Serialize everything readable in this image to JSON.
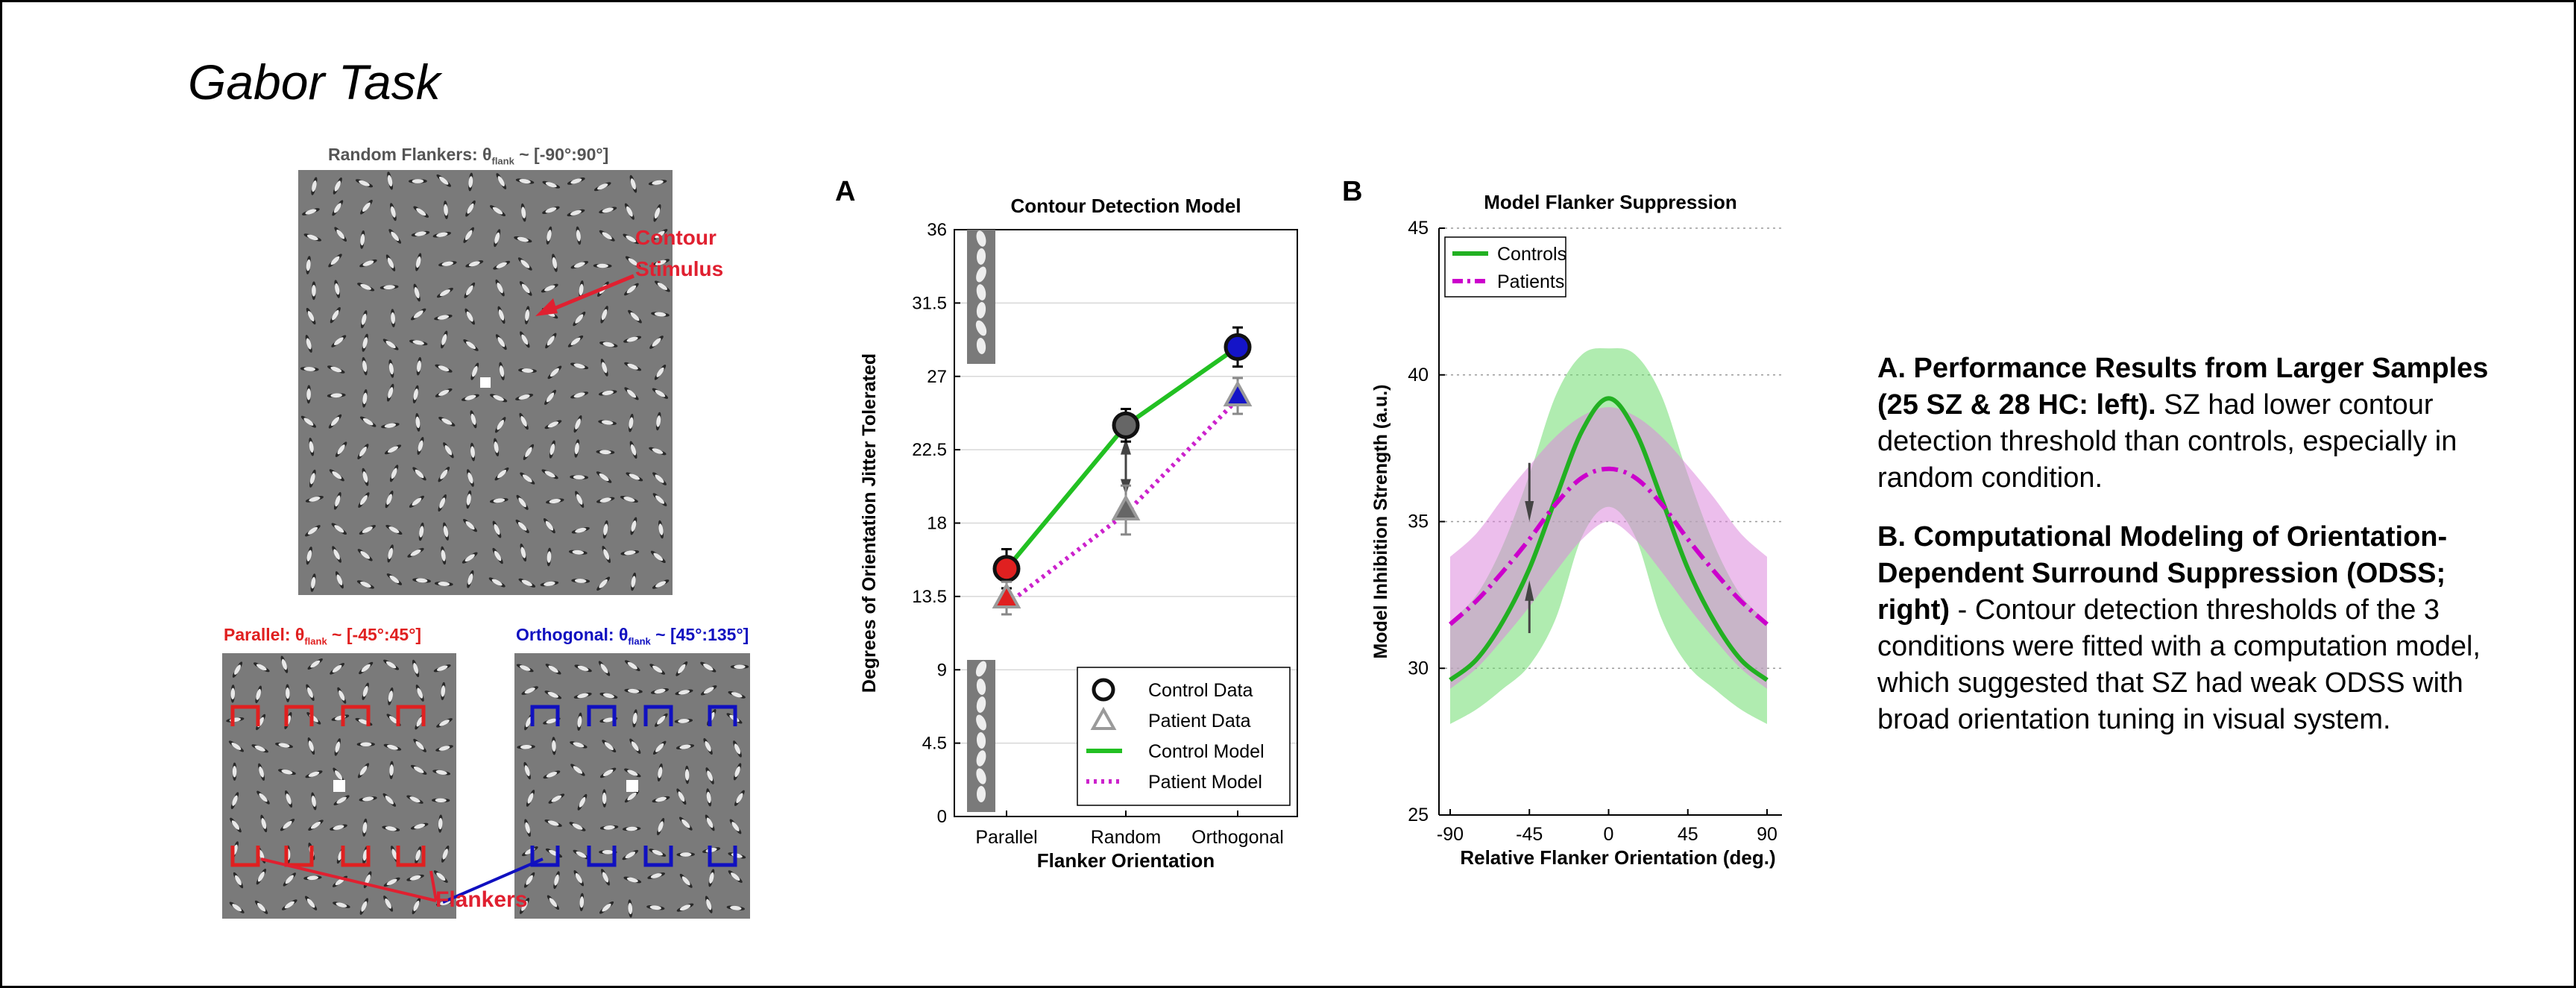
{
  "page": {
    "title": "Gabor Task"
  },
  "stimuli": {
    "random_caption": "Random Flankers: θflank ~ [-90°:90°]",
    "random_caption_parts": {
      "pre": "Random Flankers: θ",
      "sub": "flank",
      "post": " ~ [-90°:90°]"
    },
    "parallel_caption_parts": {
      "pre": "Parallel: θ",
      "sub": "flank",
      "post": " ~ [-45°:45°]"
    },
    "orthogonal_caption_parts": {
      "pre": "Orthogonal: θ",
      "sub": "flank",
      "post": " ~ [45°:135°]"
    },
    "contour_label_line1": "Contour",
    "contour_label_line2": "Stimulus",
    "flankers_label": "Flankers",
    "colors": {
      "random": "#555555",
      "parallel": "#e02020",
      "orthogonal": "#1010c0",
      "annotation": "#e02030"
    }
  },
  "chart_data": [
    {
      "id": "A",
      "panel_label": "A",
      "type": "line",
      "title": "Contour Detection Model",
      "xlabel": "Flanker Orientation",
      "ylabel": "Degrees of Orientation Jitter Tolerated",
      "categories": [
        "Parallel",
        "Random",
        "Orthogonal"
      ],
      "ylim": [
        0,
        36
      ],
      "yticks": [
        0,
        4.5,
        9,
        13.5,
        18,
        22.5,
        27,
        31.5,
        36
      ],
      "ytick_labels": [
        "0",
        "4.5",
        "9",
        "13.5",
        "18",
        "22.5",
        "27",
        "31.5",
        "36"
      ],
      "grid": true,
      "legend_position": "bottom-right",
      "series": [
        {
          "name": "Control Data",
          "kind": "points",
          "marker": "circle",
          "values": [
            15.2,
            24.0,
            28.8
          ],
          "err": [
            1.2,
            1.0,
            1.2
          ],
          "fill_colors": [
            "#e02020",
            "#666666",
            "#1414c8"
          ]
        },
        {
          "name": "Patient Data",
          "kind": "points",
          "marker": "triangle",
          "values": [
            13.4,
            18.8,
            25.8
          ],
          "err": [
            1.0,
            1.5,
            1.1
          ],
          "fill_colors": [
            "#e02020",
            "#666666",
            "#1414c8"
          ]
        },
        {
          "name": "Control Model",
          "kind": "line",
          "style": "solid",
          "color": "#22c022",
          "values": [
            15.2,
            24.0,
            28.8
          ]
        },
        {
          "name": "Patient Model",
          "kind": "line",
          "style": "dotted",
          "color": "#cc22cc",
          "values": [
            13.0,
            18.6,
            25.6
          ]
        }
      ]
    },
    {
      "id": "B",
      "panel_label": "B",
      "type": "line",
      "title": "Model Flanker Suppression",
      "xlabel": "Relative Flanker Orientation (deg.)",
      "ylabel": "Model Inhibition Strength (a.u.)",
      "xlim": [
        -90,
        90
      ],
      "xticks": [
        -90,
        -45,
        0,
        45,
        90
      ],
      "xtick_labels": [
        "-90",
        "-45",
        "0",
        "45",
        "90"
      ],
      "ylim": [
        25,
        45
      ],
      "yticks": [
        25,
        30,
        35,
        40,
        45
      ],
      "ytick_labels": [
        "25",
        "30",
        "35",
        "40",
        "45"
      ],
      "grid": true,
      "legend_position": "top-left",
      "series": [
        {
          "name": "Controls",
          "style": "solid",
          "color": "#22b022",
          "band_color": "#70dd70",
          "x": [
            -90,
            -75,
            -60,
            -45,
            -30,
            -15,
            0,
            15,
            30,
            45,
            60,
            75,
            90
          ],
          "values": [
            29.6,
            30.3,
            31.6,
            33.4,
            35.8,
            38.1,
            39.2,
            38.1,
            35.8,
            33.4,
            31.6,
            30.3,
            29.6
          ],
          "lower": [
            28.1,
            28.6,
            29.3,
            30.1,
            31.7,
            34.5,
            35.5,
            34.5,
            31.7,
            30.1,
            29.3,
            28.6,
            28.1
          ],
          "upper": [
            31.6,
            32.5,
            34.2,
            36.6,
            39.3,
            40.7,
            40.9,
            40.7,
            39.3,
            36.6,
            34.2,
            32.5,
            31.6
          ]
        },
        {
          "name": "Patients",
          "style": "dashdot",
          "color": "#cc00cc",
          "band_color": "#dd88dd",
          "x": [
            -90,
            -75,
            -60,
            -45,
            -30,
            -15,
            0,
            15,
            30,
            45,
            60,
            75,
            90
          ],
          "values": [
            31.5,
            32.3,
            33.3,
            34.4,
            35.6,
            36.5,
            36.8,
            36.5,
            35.6,
            34.4,
            33.3,
            32.3,
            31.5
          ],
          "lower": [
            29.3,
            30.0,
            31.0,
            32.1,
            33.3,
            34.4,
            35.0,
            34.4,
            33.3,
            32.1,
            31.0,
            30.0,
            29.3
          ],
          "upper": [
            33.8,
            34.6,
            35.8,
            36.9,
            37.9,
            38.6,
            38.9,
            38.6,
            37.9,
            36.9,
            35.8,
            34.6,
            33.8
          ]
        }
      ]
    }
  ],
  "description": {
    "a_heading": "A. Performance Results from Larger Samples (25 SZ & 28 HC: left).",
    "a_text": " SZ had lower contour detection threshold than controls, especially in random condition.",
    "b_heading": "B. Computational Modeling of Orientation-Dependent Surround Suppression (ODSS; right)",
    "b_text": " - Contour detection thresholds of the 3 conditions were fitted with a computation model, which suggested that SZ had weak ODSS with broad orientation tuning in visual system."
  }
}
